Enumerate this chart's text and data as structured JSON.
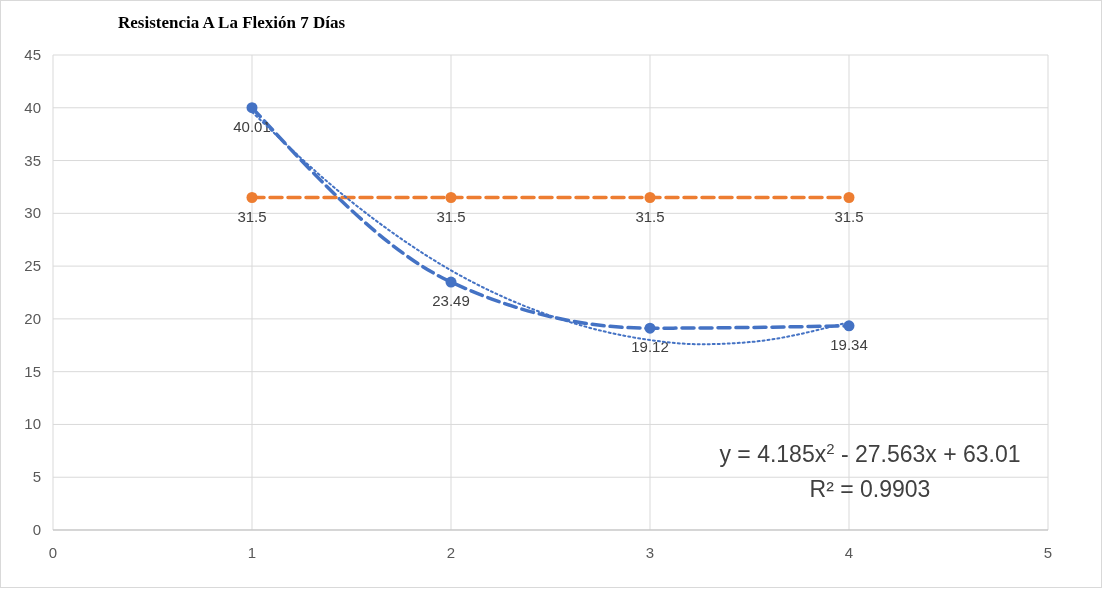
{
  "chart_data": {
    "type": "line",
    "title": "Resistencia A La Flexión 7 Días",
    "x": [
      1,
      2,
      3,
      4
    ],
    "series": [
      {
        "color": "#4472c4",
        "values": [
          40.01,
          23.49,
          19.12,
          19.34
        ],
        "line_style": "dashed",
        "marker": "circle",
        "data_labels": true
      },
      {
        "color": "#ed7d31",
        "values": [
          31.5,
          31.5,
          31.5,
          31.5
        ],
        "line_style": "dashed",
        "marker": "circle",
        "data_labels": true
      },
      {
        "type": "line",
        "color": "#4472c4",
        "x": [
          1,
          1.5,
          2,
          2.5,
          3,
          3.25,
          3.5,
          4
        ],
        "values": [
          39.6,
          31.1,
          24.6,
          20.3,
          18.0,
          17.6,
          17.8,
          19.7
        ],
        "line_style": "dotted",
        "marker": "none"
      }
    ],
    "xlim": [
      0,
      5
    ],
    "xticks": [
      0,
      1,
      2,
      3,
      4,
      5
    ],
    "ylim": [
      0,
      45
    ],
    "yticks": [
      0,
      5,
      10,
      15,
      20,
      25,
      30,
      35,
      40,
      45
    ],
    "grid": true,
    "annotations": [
      "y = 4.185x$^{2}$ - 27.563x + 63.01",
      "R² = 0.9903"
    ]
  }
}
